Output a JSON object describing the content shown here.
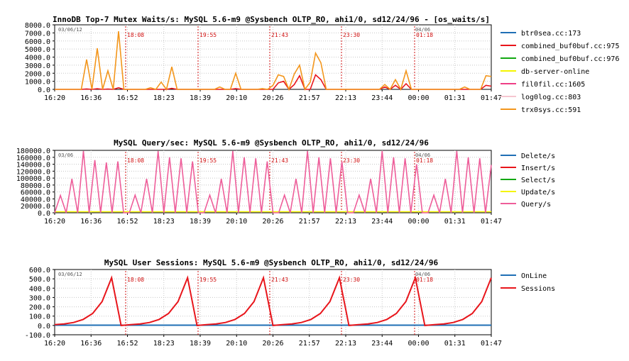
{
  "colors": {
    "btr0sea.cc:173": "#1f6fb5",
    "combined_buf0buf.cc:975": "#e8151b",
    "combined_buf0buf.cc:976": "#12a812",
    "db-server-online": "#f5f500",
    "fil0fil.cc:1605": "#ee3e86",
    "log0log.cc:803": "#f6c6d0",
    "trx0sys.cc:591": "#f3961c",
    "Delete/s": "#1f6fb5",
    "Insert/s": "#e8151b",
    "Select/s": "#12a812",
    "Update/s": "#f5f500",
    "Query/s": "#ee5e9a",
    "OnLine": "#1f6fb5",
    "Sessions": "#e8151b",
    "marker": "#d01010",
    "grid": "#c8c8c8"
  },
  "chart_data": [
    {
      "type": "line",
      "title": "InnoDB Top-7 Mutex Waits/s: MySQL 5.6-m9 @Sysbench OLTP_RO, ahi1/0, sd12/24/96 - [os_waits/s]",
      "date_start": "03/06/12",
      "date_end": "04/06",
      "x_ticks": [
        "16:20",
        "16:36",
        "16:52",
        "18:23",
        "18:39",
        "20:10",
        "20:26",
        "21:57",
        "22:13",
        "23:44",
        "00:00",
        "01:31",
        "01:47"
      ],
      "markers": [
        "18:08",
        "19:55",
        "21:43",
        "23:30",
        "01:18"
      ],
      "ylim": [
        0,
        8000
      ],
      "y_ticks": [
        "0.0",
        "1000.0",
        "2000.0",
        "3000.0",
        "4000.0",
        "5000.0",
        "6000.0",
        "7000.0",
        "8000.0"
      ],
      "legend": [
        "btr0sea.cc:173",
        "combined_buf0buf.cc:975",
        "combined_buf0buf.cc:976",
        "db-server-online",
        "fil0fil.cc:1605",
        "log0log.cc:803",
        "trx0sys.cc:591"
      ],
      "series": [
        {
          "name": "trx0sys.cc:591",
          "values": [
            0,
            0,
            0,
            0,
            0,
            0,
            3700,
            0,
            5100,
            0,
            2300,
            0,
            7200,
            0,
            0,
            0,
            0,
            0,
            200,
            0,
            900,
            0,
            2800,
            0,
            0,
            0,
            0,
            0,
            0,
            0,
            0,
            300,
            0,
            0,
            2000,
            0,
            0,
            0,
            0,
            100,
            0,
            500,
            1800,
            1600,
            0,
            1900,
            3000,
            0,
            900,
            4500,
            3300,
            0,
            0,
            0,
            0,
            0,
            0,
            0,
            0,
            0,
            0,
            0,
            600,
            0,
            1200,
            0,
            2300,
            0,
            0,
            0,
            0,
            0,
            0,
            0,
            0,
            0,
            0,
            300,
            0,
            0,
            0,
            1700,
            1600
          ]
        },
        {
          "name": "combined_buf0buf.cc:975",
          "values": [
            0,
            0,
            0,
            0,
            0,
            0,
            50,
            0,
            80,
            0,
            40,
            0,
            200,
            0,
            0,
            0,
            0,
            0,
            0,
            0,
            0,
            0,
            120,
            0,
            0,
            0,
            0,
            0,
            0,
            0,
            0,
            0,
            0,
            0,
            100,
            0,
            0,
            0,
            0,
            0,
            0,
            0,
            800,
            1000,
            0,
            600,
            1700,
            0,
            0,
            1800,
            1200,
            0,
            0,
            0,
            0,
            0,
            0,
            0,
            0,
            0,
            0,
            0,
            300,
            0,
            500,
            0,
            700,
            0,
            0,
            0,
            0,
            0,
            0,
            0,
            0,
            0,
            0,
            0,
            0,
            0,
            0,
            500,
            400
          ]
        }
      ]
    },
    {
      "type": "line",
      "title": "MySQL Query/sec: MySQL 5.6-m9 @Sysbench OLTP_RO, ahi1/0, sd12/24/96",
      "date_start": "03/06",
      "date_end": "04/06",
      "x_ticks": [
        "16:20",
        "16:36",
        "16:52",
        "18:23",
        "18:39",
        "20:10",
        "20:26",
        "21:57",
        "22:13",
        "23:44",
        "00:00",
        "01:31",
        "01:47"
      ],
      "markers": [
        "18:08",
        "19:55",
        "21:43",
        "23:30",
        "01:18"
      ],
      "ylim": [
        0,
        180000
      ],
      "y_ticks": [
        "0.0",
        "20000.0",
        "40000.0",
        "60000.0",
        "80000.0",
        "100000.0",
        "120000.0",
        "140000.0",
        "160000.0",
        "180000.0"
      ],
      "legend": [
        "Delete/s",
        "Insert/s",
        "Select/s",
        "Update/s",
        "Query/s"
      ],
      "series": [
        {
          "name": "Query/s",
          "values": [
            0,
            50000,
            0,
            98000,
            0,
            178000,
            0,
            152000,
            0,
            145000,
            0,
            148000,
            0,
            0,
            51000,
            0,
            98000,
            0,
            178000,
            0,
            160000,
            0,
            157000,
            0,
            148000,
            0,
            0,
            51000,
            0,
            98000,
            0,
            178000,
            0,
            160000,
            0,
            157000,
            0,
            148000,
            0,
            0,
            51000,
            0,
            98000,
            0,
            178000,
            0,
            160000,
            0,
            157000,
            0,
            148000,
            0,
            0,
            51000,
            0,
            98000,
            0,
            178000,
            0,
            160000,
            0,
            157000,
            0,
            140000,
            0,
            0,
            51000,
            0,
            98000,
            0,
            178000,
            0,
            160000,
            0,
            157000,
            0,
            138000
          ]
        },
        {
          "name": "Update/s",
          "values": [
            3000,
            3000,
            3000,
            3000,
            3000,
            3000,
            3000,
            3000,
            3000,
            3000,
            3000,
            3000,
            3000,
            3000,
            3000,
            3000,
            3000,
            3000,
            3000,
            3000,
            3000,
            3000,
            3000,
            3000,
            3000,
            3000,
            3000,
            3000,
            3000,
            3000,
            3000,
            3000,
            3000,
            3000,
            3000,
            3000,
            3000,
            3000,
            3000,
            3000,
            3000,
            3000,
            3000,
            3000,
            3000,
            3000,
            3000,
            3000,
            3000,
            3000,
            3000,
            3000,
            3000,
            3000,
            3000,
            3000,
            3000,
            3000,
            3000,
            3000,
            3000,
            3000,
            3000,
            3000,
            3000,
            3000,
            3000,
            3000,
            3000,
            3000,
            3000,
            3000,
            3000,
            3000,
            3000,
            3000,
            3000,
            3000
          ]
        }
      ]
    },
    {
      "type": "line",
      "title": "MySQL User Sessions: MySQL 5.6-m9 @Sysbench OLTP_RO, ahi1/0, sd12/24/96",
      "date_start": "03/06/12",
      "date_end": "04/06",
      "x_ticks": [
        "16:20",
        "16:36",
        "16:52",
        "18:23",
        "18:39",
        "20:10",
        "20:26",
        "21:57",
        "22:13",
        "23:44",
        "00:00",
        "01:31",
        "01:47"
      ],
      "markers": [
        "18:08",
        "19:55",
        "21:43",
        "23:30",
        "01:18"
      ],
      "ylim": [
        -100,
        600
      ],
      "y_ticks": [
        "-100.0",
        "0.0",
        "100.0",
        "200.0",
        "300.0",
        "400.0",
        "500.0",
        "600.0"
      ],
      "legend": [
        "OnLine",
        "Sessions"
      ],
      "series": [
        {
          "name": "Sessions",
          "values": [
            8,
            16,
            32,
            64,
            128,
            256,
            512,
            0,
            8,
            16,
            32,
            64,
            128,
            256,
            512,
            0,
            8,
            16,
            32,
            64,
            128,
            256,
            512,
            0,
            8,
            16,
            32,
            64,
            128,
            256,
            512,
            0,
            8,
            16,
            32,
            64,
            128,
            256,
            512,
            0,
            8,
            16,
            32,
            64,
            128,
            256,
            512
          ]
        },
        {
          "name": "OnLine",
          "values": [
            3,
            3,
            3,
            3,
            3,
            3,
            3,
            3,
            3,
            3,
            3,
            3,
            3,
            3,
            3,
            3,
            3,
            3,
            3,
            3,
            3,
            3,
            3,
            3,
            3,
            3,
            3,
            3,
            3,
            3,
            3,
            3,
            3,
            3,
            3,
            3,
            3,
            3,
            3,
            3,
            3,
            3,
            3,
            3,
            3,
            3,
            3
          ]
        }
      ]
    }
  ]
}
